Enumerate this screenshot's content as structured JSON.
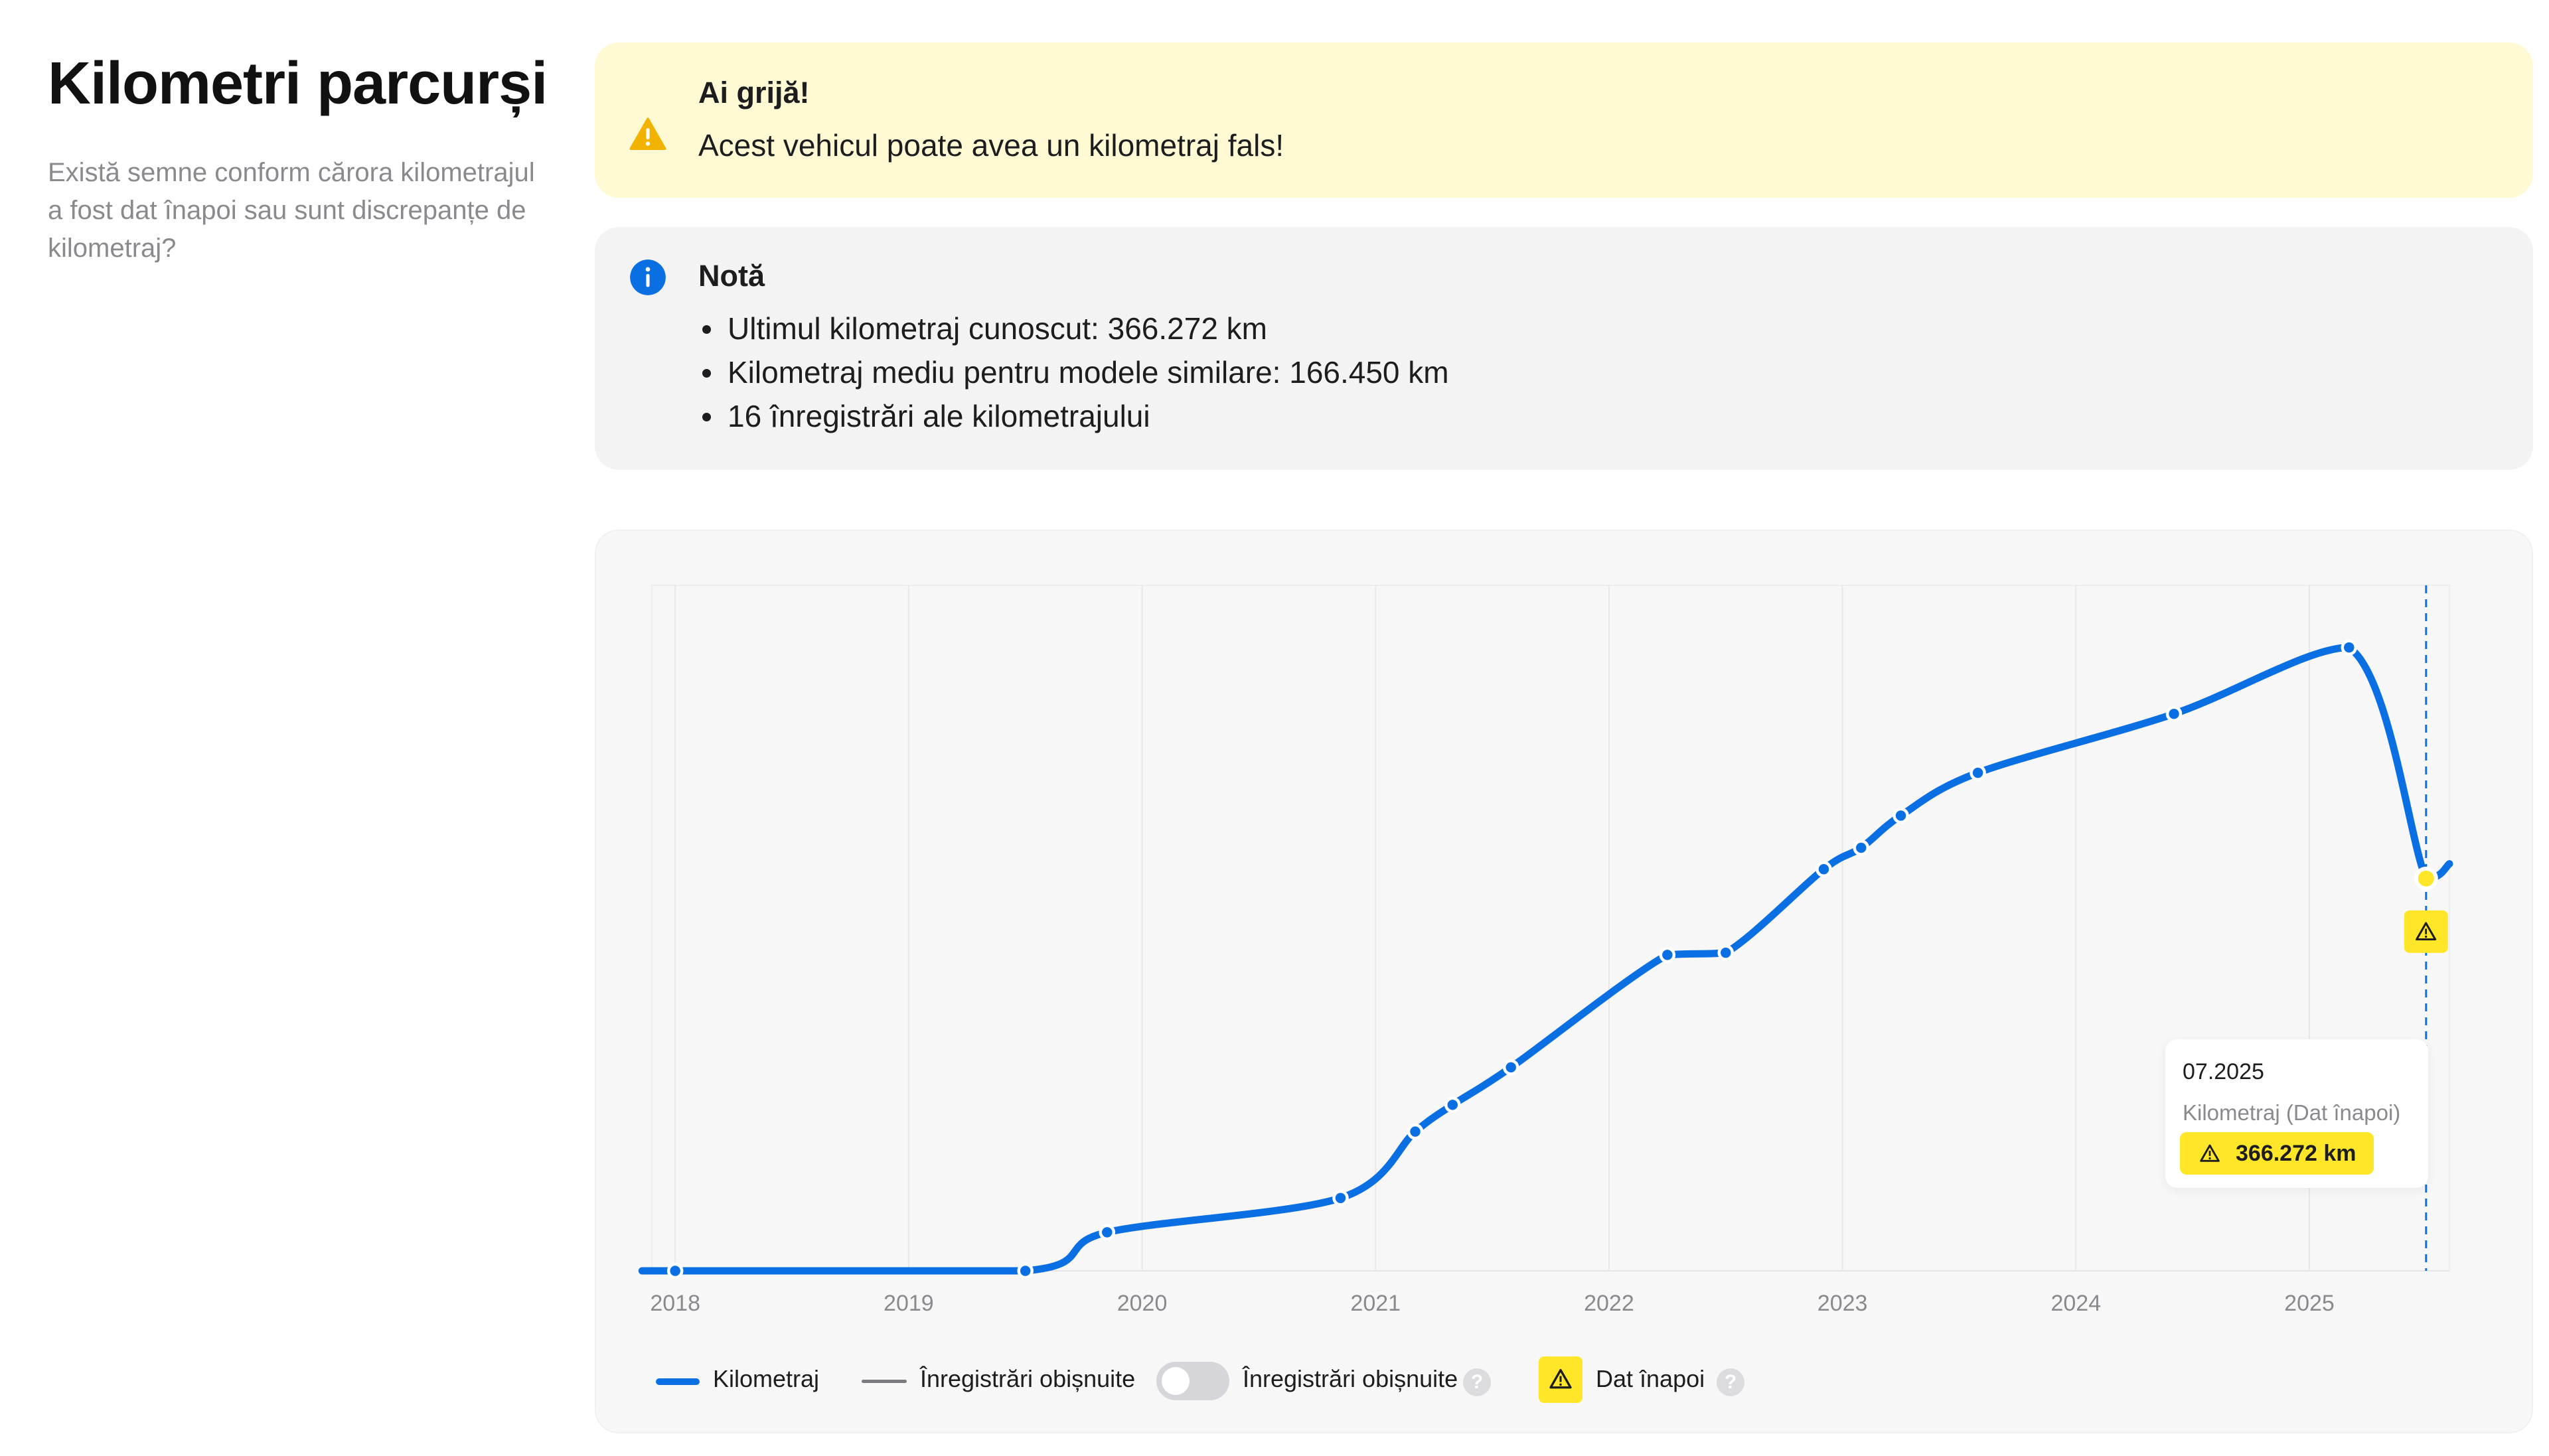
{
  "sidebar": {
    "title": "Kilometri parcurși",
    "description": "Există semne conform cărora kilometrajul a fost dat înapoi sau sunt discrepanțe de kilometraj?"
  },
  "warning": {
    "icon": "warning-triangle-icon",
    "title": "Ai grijă!",
    "message": "Acest vehicul poate avea un kilometraj fals!",
    "color": "#fff9d4"
  },
  "note": {
    "icon": "info-circle-icon",
    "title": "Notă",
    "items": [
      "Ultimul kilometraj cunoscut: 366.272 km",
      "Kilometraj mediu pentru modele similare: 166.450 km",
      "16 înregistrări ale kilometrajului"
    ]
  },
  "chart_data": {
    "type": "line",
    "title": "",
    "xlabel": "",
    "ylabel": "",
    "x_ticks": [
      "2018",
      "2019",
      "2020",
      "2021",
      "2022",
      "2023",
      "2024",
      "2025"
    ],
    "xlim": [
      2017.9,
      2025.6
    ],
    "ylim": [
      0,
      640000
    ],
    "y_axis_labels_shown": false,
    "grid": "vertical",
    "legend_position": "bottom-left",
    "series": [
      {
        "name": "Kilometraj",
        "color": "#0a6fe3",
        "points": [
          {
            "x": 2018.0,
            "y": 0
          },
          {
            "x": 2019.5,
            "y": 0
          },
          {
            "x": 2019.85,
            "y": 36000
          },
          {
            "x": 2020.85,
            "y": 68000
          },
          {
            "x": 2021.17,
            "y": 130000
          },
          {
            "x": 2021.33,
            "y": 155000
          },
          {
            "x": 2021.58,
            "y": 190000
          },
          {
            "x": 2022.25,
            "y": 295000
          },
          {
            "x": 2022.5,
            "y": 297000
          },
          {
            "x": 2022.92,
            "y": 375000
          },
          {
            "x": 2023.08,
            "y": 395000
          },
          {
            "x": 2023.25,
            "y": 425000
          },
          {
            "x": 2023.58,
            "y": 465000
          },
          {
            "x": 2024.42,
            "y": 520000
          },
          {
            "x": 2025.17,
            "y": 582000
          },
          {
            "x": 2025.5,
            "y": 366272,
            "flag": "Dat înapoi"
          }
        ],
        "tail_x": 2025.6,
        "tail_y": 380000
      }
    ],
    "highlight": {
      "date": "07.2025",
      "label": "Kilometraj (Dat înapoi)",
      "value": "366.272 km",
      "color": "#ffe628"
    },
    "legend": {
      "series_label": "Kilometraj",
      "regular_label": "Înregistrări obișnuite",
      "toggle_label": "Înregistrări obișnuite",
      "toggle_on": false,
      "rolled_back_label": "Dat înapoi",
      "help_glyph": "?"
    }
  }
}
